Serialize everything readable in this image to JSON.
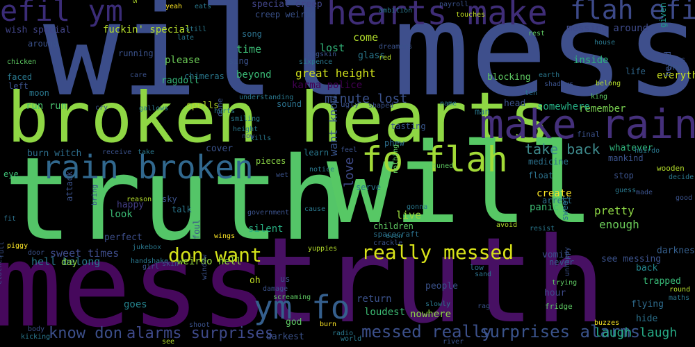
{
  "words": [
    {
      "text": "will",
      "color": "#3b4d8a"
    },
    {
      "text": "mess",
      "color": "#3e4f8c"
    },
    {
      "text": "broken hearts",
      "color": "#8fd744"
    },
    {
      "text": "truth",
      "color": "#54c568"
    },
    {
      "text": "will",
      "color": "#57c865"
    },
    {
      "text": "mess",
      "color": "#46085c"
    },
    {
      "text": "truth",
      "color": "#471063"
    },
    {
      "text": "hearts make",
      "color": "#3f2d77"
    },
    {
      "text": "make rain",
      "color": "#45307b"
    },
    {
      "text": "efil ym",
      "color": "#3b2c77"
    },
    {
      "text": "flah efil",
      "color": "#3d4a89"
    },
    {
      "text": "rain broken",
      "color": "#31688e"
    },
    {
      "text": "fo flah",
      "color": "#a2da37"
    },
    {
      "text": "ym fo",
      "color": "#355f8d"
    },
    {
      "text": "don want",
      "color": "#d4e21a"
    },
    {
      "text": "really messed",
      "color": "#d8e219"
    },
    {
      "text": "messed really",
      "color": "#3c508b"
    },
    {
      "text": "surprises alarms",
      "color": "#3a538b"
    },
    {
      "text": "alarms surprises",
      "color": "#3e4989"
    },
    {
      "text": "know don",
      "color": "#3c4f8a"
    },
    {
      "text": "laugh laugh",
      "color": "#26a884"
    },
    {
      "text": "want know",
      "color": "#39558c"
    },
    {
      "text": "take back",
      "color": "#3e8a8c"
    },
    {
      "text": "great height",
      "color": "#d0e11c"
    },
    {
      "text": "karma police",
      "color": "#440154"
    },
    {
      "text": "minute lost",
      "color": "#3b528b"
    },
    {
      "text": "love",
      "color": "#3f4a89"
    },
    {
      "text": "messing around",
      "color": "#3e4a89"
    },
    {
      "text": "special creep",
      "color": "#414487"
    },
    {
      "text": "fuckin' special",
      "color": "#b5de2b"
    },
    {
      "text": "wish special",
      "color": "#414487"
    },
    {
      "text": "time",
      "color": "#3cbb75"
    },
    {
      "text": "lost",
      "color": "#32b67a"
    },
    {
      "text": "come",
      "color": "#b2dd2d"
    },
    {
      "text": "please",
      "color": "#6ece58"
    },
    {
      "text": "beyond",
      "color": "#3aba76"
    },
    {
      "text": "ragdoll",
      "color": "#35b779"
    },
    {
      "text": "inside",
      "color": "#2db27d"
    },
    {
      "text": "remember",
      "color": "#7ad151"
    },
    {
      "text": "whatever",
      "color": "#2fb47c"
    },
    {
      "text": "pretty",
      "color": "#8ed645"
    },
    {
      "text": "enough",
      "color": "#6ccd5a"
    },
    {
      "text": "panic",
      "color": "#3dbc74"
    },
    {
      "text": "create",
      "color": "#fde725"
    },
    {
      "text": "live",
      "color": "#98d83e"
    },
    {
      "text": "look",
      "color": "#3bbb75"
    },
    {
      "text": "happy",
      "color": "#433e85"
    },
    {
      "text": "perfect",
      "color": "#3d4e8a"
    },
    {
      "text": "sweet times",
      "color": "#3e4c8a"
    },
    {
      "text": "hell belong",
      "color": "#2a788e"
    },
    {
      "text": "weirdo hell",
      "color": "#95d840"
    },
    {
      "text": "silent",
      "color": "#27ad81"
    },
    {
      "text": "see messing",
      "color": "#3b528b"
    },
    {
      "text": "darkness",
      "color": "#355f8d"
    },
    {
      "text": "back",
      "color": "#24868e"
    },
    {
      "text": "trapped",
      "color": "#38b977"
    },
    {
      "text": "flying",
      "color": "#2f6c8e"
    },
    {
      "text": "hide",
      "color": "#2c728e"
    },
    {
      "text": "goes",
      "color": "#25848e"
    },
    {
      "text": "run run",
      "color": "#4ac16d"
    },
    {
      "text": "burn witch",
      "color": "#2e6f8e"
    },
    {
      "text": "spells",
      "color": "#b8de29"
    },
    {
      "text": "somewhere",
      "color": "#25ac82"
    },
    {
      "text": "head",
      "color": "#3b528b"
    },
    {
      "text": "man",
      "color": "#2a788e"
    },
    {
      "text": "sound",
      "color": "#2c728e"
    },
    {
      "text": "blocking",
      "color": "#5ec962"
    },
    {
      "text": "everything",
      "color": "#c8e020"
    },
    {
      "text": "one",
      "color": "#39568c"
    },
    {
      "text": "heard",
      "color": "#3b528b"
    },
    {
      "text": "given",
      "color": "#1f988b"
    },
    {
      "text": "life",
      "color": "#31688e"
    },
    {
      "text": "phew",
      "color": "#2e6e8e"
    },
    {
      "text": "tasting",
      "color": "#39568c"
    },
    {
      "text": "learn",
      "color": "#2a788e"
    },
    {
      "text": "cover",
      "color": "#3b528b"
    },
    {
      "text": "pieces",
      "color": "#8bd646"
    },
    {
      "text": "serve",
      "color": "#2a788e"
    },
    {
      "text": "children",
      "color": "#5ec962"
    },
    {
      "text": "spacecraft",
      "color": "#2c728e"
    },
    {
      "text": "medicine",
      "color": "#2c728e"
    },
    {
      "text": "mankind",
      "color": "#3b528b"
    },
    {
      "text": "float",
      "color": "#2c728e"
    },
    {
      "text": "vomit",
      "color": "#3b528b"
    },
    {
      "text": "never",
      "color": "#38598c"
    },
    {
      "text": "hour",
      "color": "#3e4a89"
    },
    {
      "text": "oh",
      "color": "#c2df23"
    },
    {
      "text": "us",
      "color": "#3d4e8a"
    },
    {
      "text": "return",
      "color": "#3b528b"
    },
    {
      "text": "loudest",
      "color": "#3dbc74"
    },
    {
      "text": "nowhere",
      "color": "#8ed645"
    },
    {
      "text": "people",
      "color": "#3b528b"
    },
    {
      "text": "god",
      "color": "#5ec962"
    },
    {
      "text": "darkest",
      "color": "#3b528b"
    },
    {
      "text": "creep weirdo",
      "color": "#3b528b"
    },
    {
      "text": "song",
      "color": "#2c728e"
    },
    {
      "text": "glass",
      "color": "#2a788e"
    },
    {
      "text": "running",
      "color": "#3b528b"
    },
    {
      "text": "sing",
      "color": "#3b528b"
    },
    {
      "text": "chimeras",
      "color": "#2a788e"
    },
    {
      "text": "around",
      "color": "#3b528b"
    },
    {
      "text": "faced",
      "color": "#2a788e"
    },
    {
      "text": "left",
      "color": "#3b528b"
    },
    {
      "text": "moon",
      "color": "#2a788e"
    },
    {
      "text": "eye",
      "color": "#3dbc74"
    },
    {
      "text": "sky",
      "color": "#3b528b"
    },
    {
      "text": "talk",
      "color": "#2a788e"
    },
    {
      "text": "day",
      "color": "#8ed645"
    },
    {
      "text": "foul",
      "color": "#3b528b"
    },
    {
      "text": "attack",
      "color": "#3b528b"
    },
    {
      "text": "arrest",
      "color": "#2c728e"
    },
    {
      "text": "sweet",
      "color": "#2c728e"
    },
    {
      "text": "stop",
      "color": "#3b528b"
    },
    {
      "text": "done",
      "color": "#3b528b"
    },
    {
      "text": "height",
      "color": "#2a788e"
    },
    {
      "text": "kills",
      "color": "#2a788e"
    },
    {
      "text": "ugly",
      "color": "#3b528b"
    },
    {
      "text": "eats",
      "color": "#2a788e"
    },
    {
      "text": "still",
      "color": "#2a788e"
    },
    {
      "text": "late",
      "color": "#2a788e"
    },
    {
      "text": "pigskin",
      "color": "#3b528b"
    },
    {
      "text": "sixpence",
      "color": "#2a788e"
    },
    {
      "text": "dreamers",
      "color": "#3b528b"
    },
    {
      "text": "ambition",
      "color": "#2a788e"
    },
    {
      "text": "payroll",
      "color": "#3b528b"
    },
    {
      "text": "touches",
      "color": "#c2df23"
    },
    {
      "text": "rest",
      "color": "#5ec962"
    },
    {
      "text": "house",
      "color": "#2a788e"
    },
    {
      "text": "tables",
      "color": "#3b528b"
    },
    {
      "text": "earth",
      "color": "#2a788e"
    },
    {
      "text": "shadows",
      "color": "#3b528b"
    },
    {
      "text": "belong",
      "color": "#b5de2b"
    },
    {
      "text": "king",
      "color": "#5ec962"
    },
    {
      "text": "final",
      "color": "#3b528b"
    },
    {
      "text": "hairdo",
      "color": "#2a788e"
    },
    {
      "text": "wooden",
      "color": "#b5de2b"
    },
    {
      "text": "decide",
      "color": "#2a788e"
    },
    {
      "text": "good",
      "color": "#3b528b"
    },
    {
      "text": "guess",
      "color": "#2a788e"
    },
    {
      "text": "made",
      "color": "#3b528b"
    },
    {
      "text": "avoid",
      "color": "#b5de2b"
    },
    {
      "text": "resist",
      "color": "#2a788e"
    },
    {
      "text": "trying",
      "color": "#5ec962"
    },
    {
      "text": "unhappy",
      "color": "#3b528b"
    },
    {
      "text": "fridge",
      "color": "#5ec962"
    },
    {
      "text": "round",
      "color": "#b5de2b"
    },
    {
      "text": "maths",
      "color": "#2a788e"
    },
    {
      "text": "buzzes",
      "color": "#fde725"
    },
    {
      "text": "slowly",
      "color": "#2a788e"
    },
    {
      "text": "rag",
      "color": "#3b528b"
    },
    {
      "text": "river",
      "color": "#3b528b"
    },
    {
      "text": "low",
      "color": "#2c728e"
    },
    {
      "text": "sand",
      "color": "#2c728e"
    },
    {
      "text": "noise",
      "color": "#3b528b"
    },
    {
      "text": "ten",
      "color": "#2c728e"
    },
    {
      "text": "red",
      "color": "#b5de2b"
    },
    {
      "text": "yeah",
      "color": "#fde725"
    },
    {
      "text": "sun",
      "color": "#b5de2b"
    },
    {
      "text": "chicken",
      "color": "#5ec962"
    },
    {
      "text": "care",
      "color": "#3b528b"
    },
    {
      "text": "cry",
      "color": "#3b528b"
    },
    {
      "text": "gallows",
      "color": "#2a788e"
    },
    {
      "text": "hurts",
      "color": "#2a788e"
    },
    {
      "text": "smiling",
      "color": "#2a788e"
    },
    {
      "text": "now",
      "color": "#3b528b"
    },
    {
      "text": "understanding",
      "color": "#2a788e"
    },
    {
      "text": "shaped",
      "color": "#3b528b"
    },
    {
      "text": "name",
      "color": "#2a788e"
    },
    {
      "text": "feel",
      "color": "#3b528b"
    },
    {
      "text": "receive",
      "color": "#3b528b"
    },
    {
      "text": "take",
      "color": "#2a788e"
    },
    {
      "text": "wet",
      "color": "#3b528b"
    },
    {
      "text": "notice",
      "color": "#2a788e"
    },
    {
      "text": "detuned",
      "color": "#5ec962"
    },
    {
      "text": "nothing",
      "color": "#5ec962"
    },
    {
      "text": "gonna",
      "color": "#2a788e"
    },
    {
      "text": "reason",
      "color": "#b5de2b"
    },
    {
      "text": "bring",
      "color": "#3b528b"
    },
    {
      "text": "fit",
      "color": "#2c728e"
    },
    {
      "text": "government",
      "color": "#3b528b"
    },
    {
      "text": "cause",
      "color": "#2a788e"
    },
    {
      "text": "wings",
      "color": "#fde725"
    },
    {
      "text": "jukebox",
      "color": "#2a788e"
    },
    {
      "text": "piggy",
      "color": "#fde725"
    },
    {
      "text": "door",
      "color": "#3b528b"
    },
    {
      "text": "handshake",
      "color": "#2a788e"
    },
    {
      "text": "girl",
      "color": "#3b528b"
    },
    {
      "text": "skin",
      "color": "#3b528b"
    },
    {
      "text": "yuppies",
      "color": "#b5de2b"
    },
    {
      "text": "crackle",
      "color": "#3b528b"
    },
    {
      "text": "even",
      "color": "#2a788e"
    },
    {
      "text": "full",
      "color": "#3b528b"
    },
    {
      "text": "window",
      "color": "#3b528b"
    },
    {
      "text": "damage",
      "color": "#3b528b"
    },
    {
      "text": "screaming",
      "color": "#5ec962"
    },
    {
      "text": "clothes",
      "color": "#3b528b"
    },
    {
      "text": "body",
      "color": "#3b528b"
    },
    {
      "text": "kicking",
      "color": "#2a788e"
    },
    {
      "text": "see",
      "color": "#b5de2b"
    },
    {
      "text": "shoot",
      "color": "#3b528b"
    },
    {
      "text": "burn",
      "color": "#fde725"
    },
    {
      "text": "radio",
      "color": "#2a788e"
    },
    {
      "text": "world",
      "color": "#2a788e"
    }
  ]
}
